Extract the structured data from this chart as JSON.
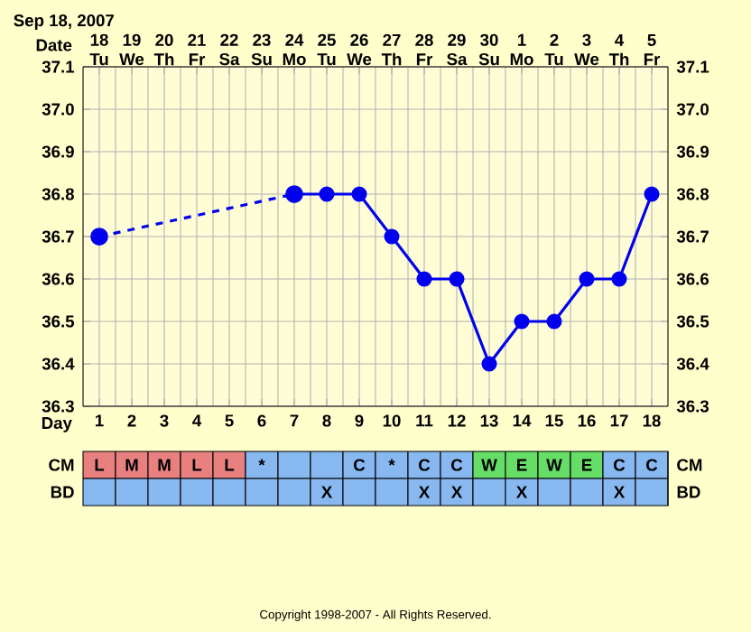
{
  "chart_data": [
    {
      "type": "line",
      "title": "Sep 18, 2007",
      "xlabel": "Day",
      "x2label": "Date",
      "xlim": [
        0.5,
        18.5
      ],
      "xticks": [
        1,
        2,
        3,
        4,
        5,
        6,
        7,
        8,
        9,
        10,
        11,
        12,
        13,
        14,
        15,
        16,
        17,
        18
      ],
      "x2lim": [
        "2007-09-17T12:00",
        "2007-10-05T12:00"
      ],
      "x2ticks": [
        {
          "value": "2007-09-18",
          "label": "18 Tu"
        },
        {
          "value": "2007-09-19",
          "label": "19 We"
        },
        {
          "value": "2007-09-20",
          "label": "20 Th"
        },
        {
          "value": "2007-09-21",
          "label": "21 Fr"
        },
        {
          "value": "2007-09-22",
          "label": "22 Sa"
        },
        {
          "value": "2007-09-23",
          "label": "23 Su"
        },
        {
          "value": "2007-09-24",
          "label": "24 Mo"
        },
        {
          "value": "2007-09-25",
          "label": "25 Tu"
        },
        {
          "value": "2007-09-26",
          "label": "26 We"
        },
        {
          "value": "2007-09-27",
          "label": "27 Th"
        },
        {
          "value": "2007-09-28",
          "label": "28 Fr"
        },
        {
          "value": "2007-09-29",
          "label": "29 Sa"
        },
        {
          "value": "2007-09-30",
          "label": "30 Su"
        },
        {
          "value": "2007-10-01",
          "label": "1 Mo"
        },
        {
          "value": "2007-10-02",
          "label": "2 Tu"
        },
        {
          "value": "2007-10-03",
          "label": "3 We"
        },
        {
          "value": "2007-10-04",
          "label": "4 Th"
        },
        {
          "value": "2007-10-05",
          "label": "5 Fr"
        }
      ],
      "ylim": [
        36.3,
        37.1
      ],
      "yticks": [
        36.3,
        36.4,
        36.5,
        36.6,
        36.7,
        36.8,
        36.9,
        {
          "value": 37.0,
          "label": "37.0"
        },
        37.1
      ],
      "y2lim": [
        36.3,
        37.1
      ],
      "y2ticks": [
        36.3,
        36.4,
        36.5,
        36.6,
        36.7,
        36.8,
        36.9,
        {
          "value": 37.0,
          "label": "37.0"
        },
        37.1
      ],
      "grid": true,
      "marker": "circle",
      "series": [
        {
          "color": "#0000ee",
          "line_style": "dashed",
          "x": [
            1,
            7
          ],
          "values": [
            36.7,
            36.8
          ]
        },
        {
          "color": "#0000ee",
          "line_style": "solid",
          "x": [
            7,
            8,
            9,
            10,
            11,
            12,
            13,
            14,
            15,
            16,
            17,
            18
          ],
          "values": [
            36.8,
            36.8,
            36.8,
            36.7,
            36.6,
            36.6,
            36.4,
            36.5,
            36.5,
            36.6,
            36.6,
            36.8
          ]
        }
      ],
      "annotations": [
        "Copyright 1998-2007 - All Rights Reserved."
      ]
    },
    {
      "type": "heatmap",
      "tick_labels": "y",
      "categories": [
        null,
        null,
        null,
        null,
        null,
        null,
        null,
        null,
        null,
        null,
        null,
        null,
        null,
        null,
        null,
        null,
        null,
        null
      ],
      "y_categories": [
        "CM",
        "BD"
      ],
      "y2_categories": [
        "CM",
        "BD"
      ],
      "cells": [
        [
          null,
          null,
          null,
          null,
          null,
          null,
          null,
          null,
          null,
          null,
          null,
          null,
          null,
          null,
          null,
          null,
          null,
          null
        ],
        [
          null,
          null,
          null,
          null,
          null,
          null,
          null,
          null,
          null,
          null,
          null,
          null,
          null,
          null,
          null,
          null,
          null,
          null
        ]
      ],
      "cell_labels": [
        [
          "L",
          "M",
          "M",
          "L",
          "L",
          "*",
          null,
          null,
          "C",
          "*",
          "C",
          "C",
          "W",
          "E",
          "W",
          "E",
          "C",
          "C"
        ],
        [
          null,
          null,
          null,
          null,
          null,
          null,
          null,
          "X",
          null,
          null,
          "X",
          "X",
          null,
          "X",
          null,
          null,
          "X",
          null
        ]
      ],
      "colors": [
        [
          "#e88080",
          "#e88080",
          "#e88080",
          "#e88080",
          "#e88080",
          "#88b8f0",
          "#88b8f0",
          "#88b8f0",
          "#88b8f0",
          "#88b8f0",
          "#88b8f0",
          "#88b8f0",
          "#66dd66",
          "#66dd66",
          "#66dd66",
          "#66dd66",
          "#88b8f0",
          "#88b8f0"
        ],
        [
          "#88b8f0",
          "#88b8f0",
          "#88b8f0",
          "#88b8f0",
          "#88b8f0",
          "#88b8f0",
          "#88b8f0",
          "#88b8f0",
          "#88b8f0",
          "#88b8f0",
          "#88b8f0",
          "#88b8f0",
          "#88b8f0",
          "#88b8f0",
          "#88b8f0",
          "#88b8f0",
          "#88b8f0",
          "#88b8f0"
        ]
      ]
    }
  ]
}
